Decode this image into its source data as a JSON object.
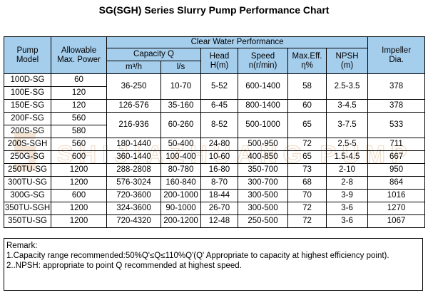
{
  "title": "SG(SGH) Series Slurry Pump Performance Chart",
  "header": {
    "pump_model": "Pump Model",
    "allowable_max_power": "Allowable Max. Power",
    "clear_water_performance": "Clear Water Performance",
    "capacity": "Capacity  Q",
    "capacity_m3h": "m³/h",
    "capacity_ls": "l/s",
    "head": "Head H(m)",
    "speed": "Speed n(r/min)",
    "max_eff": "Max.Eff. η%",
    "npsh": "NPSH (m)",
    "impeller_dia": "Impeller Dia."
  },
  "rows": [
    {
      "model": "100D-SG",
      "power": "60",
      "cap_m3h": "36-250",
      "cap_ls": "10-70",
      "head": "5-52",
      "speed": "600-1400",
      "eff": "58",
      "npsh": "2.5-3.5",
      "dia": "378"
    },
    {
      "model": "100E-SG",
      "power": "120"
    },
    {
      "model": "150E-SG",
      "power": "120",
      "cap_m3h": "126-576",
      "cap_ls": "35-160",
      "head": "6-45",
      "speed": "800-1400",
      "eff": "60",
      "npsh": "3-4.5",
      "dia": "378"
    },
    {
      "model": "200F-SG",
      "power": "560",
      "cap_m3h": "216-936",
      "cap_ls": "60-260",
      "head": "8-52",
      "speed": "500-1000",
      "eff": "65",
      "npsh": "3-7.5",
      "dia": "533"
    },
    {
      "model": "200S-SG",
      "power": "580"
    },
    {
      "model": "200S-SGH",
      "power": "560",
      "cap_m3h": "180-1440",
      "cap_ls": "50-400",
      "head": "24-80",
      "speed": "500-950",
      "eff": "72",
      "npsh": "2.5-5",
      "dia": "711"
    },
    {
      "model": "250G-SG",
      "power": "600",
      "cap_m3h": "360-1440",
      "cap_ls": "100-400",
      "head": "10-60",
      "speed": "400-850",
      "eff": "65",
      "npsh": "1.5-4.5",
      "dia": "667"
    },
    {
      "model": "250TU-SG",
      "power": "1200",
      "cap_m3h": "288-2808",
      "cap_ls": "80-780",
      "head": "16-80",
      "speed": "350-700",
      "eff": "73",
      "npsh": "2-10",
      "dia": "950"
    },
    {
      "model": "300TU-SG",
      "power": "1200",
      "cap_m3h": "576-3024",
      "cap_ls": "160-840",
      "head": "8-70",
      "speed": "300-700",
      "eff": "68",
      "npsh": "2-8",
      "dia": "864"
    },
    {
      "model": "300G-SG",
      "power": "600",
      "cap_m3h": "720-3600",
      "cap_ls": "200-1000",
      "head": "18-44",
      "speed": "300-500",
      "eff": "70",
      "npsh": "3-9",
      "dia": "1016"
    },
    {
      "model": "350TU-SGH",
      "power": "1200",
      "cap_m3h": "324-3600",
      "cap_ls": "90-1000",
      "head": "26-70",
      "speed": "300-500",
      "eff": "72",
      "npsh": "3-6",
      "dia": "1270"
    },
    {
      "model": "350TU-SG",
      "power": "1200",
      "cap_m3h": "720-4320",
      "cap_ls": "200-1200",
      "head": "12-48",
      "speed": "250-500",
      "eff": "72",
      "npsh": "3-6",
      "dia": "1067"
    }
  ],
  "remarks": {
    "label": "Remark:",
    "line1": "1.Capacity range recommended:50%Q'≤Q≤110%Q'(Q' Appropriate to capacity at highest efficiency point).",
    "line2": "2..NPSH: appropriate to point Q recommended at highest speed."
  },
  "watermark": {
    "text": "SHIJIAZHUANG PUMP",
    "color": "#e8c8a8"
  }
}
